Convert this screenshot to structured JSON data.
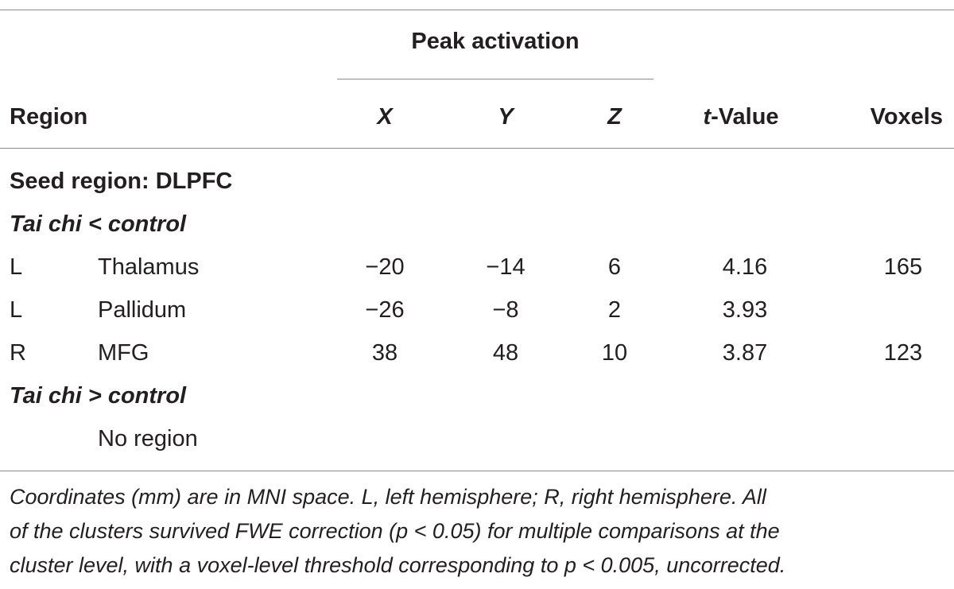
{
  "table": {
    "group_header": "Peak activation",
    "columns": {
      "region": "Region",
      "x": "X",
      "y": "Y",
      "z": "Z",
      "t_prefix": "t",
      "t_suffix": "-Value",
      "voxels": "Voxels"
    },
    "seed_label": "Seed region: DLPFC",
    "contrast_less": "Tai chi < control",
    "rows": [
      {
        "hemi": "L",
        "region": "Thalamus",
        "x": "−20",
        "y": "−14",
        "z": "6",
        "t": "4.16",
        "voxels": "165"
      },
      {
        "hemi": "L",
        "region": "Pallidum",
        "x": "−26",
        "y": "−8",
        "z": "2",
        "t": "3.93",
        "voxels": ""
      },
      {
        "hemi": "R",
        "region": "MFG",
        "x": "38",
        "y": "48",
        "z": "10",
        "t": "3.87",
        "voxels": "123"
      }
    ],
    "contrast_greater": "Tai chi > control",
    "no_region": "No region"
  },
  "footnote": {
    "line1": "Coordinates (mm) are in MNI space. L, left hemisphere; R, right hemisphere. All",
    "line2": "of the clusters survived FWE correction (p < 0.05) for multiple comparisons at the",
    "line3": "cluster level, with a voxel-level threshold corresponding to p < 0.005, uncorrected."
  }
}
